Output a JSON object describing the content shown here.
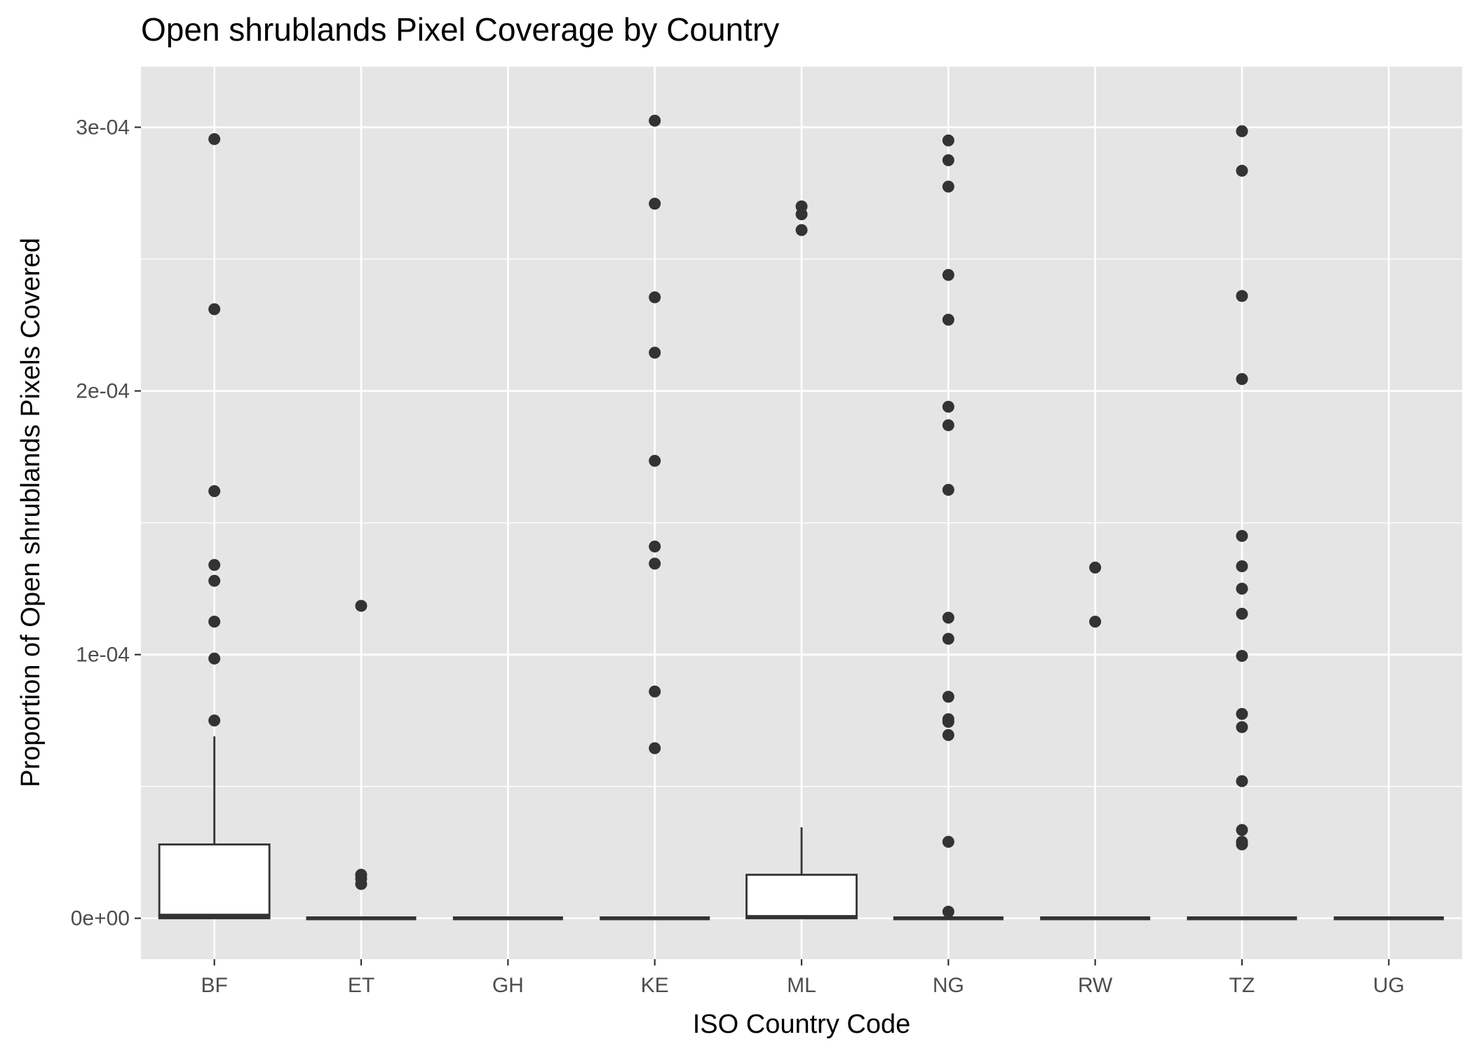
{
  "chart_data": {
    "type": "boxplot",
    "title": "Open shrublands Pixel Coverage by Country",
    "xlabel": "ISO Country Code",
    "ylabel": "Proportion of Open shrublands Pixels Covered",
    "ylim": [
      -1.55e-05,
      0.000323
    ],
    "y_ticks": [
      {
        "value": 0,
        "label": "0e+00"
      },
      {
        "value": 0.0001,
        "label": "1e-04"
      },
      {
        "value": 0.0002,
        "label": "2e-04"
      },
      {
        "value": 0.0003,
        "label": "3e-04"
      }
    ],
    "y_minor_ticks": [
      5e-05,
      0.00015,
      0.00025
    ],
    "grid": true,
    "colors": {
      "panel": "#e5e5e5",
      "grid": "#ffffff",
      "box_fill": "#ffffff",
      "box_line": "#333333",
      "point": "#333333"
    },
    "categories": [
      "BF",
      "ET",
      "GH",
      "KE",
      "ML",
      "NG",
      "RW",
      "TZ",
      "UG"
    ],
    "boxes": [
      {
        "category": "BF",
        "min": 0,
        "q1": 0,
        "median": 1e-06,
        "q3": 2.8e-05,
        "max": 6.9e-05,
        "outliers": [
          7.5e-05,
          9.85e-05,
          0.0001125,
          0.000128,
          0.000134,
          0.000162,
          0.000231,
          0.0002955
        ]
      },
      {
        "category": "ET",
        "min": 0,
        "q1": 0,
        "median": 0,
        "q3": 0,
        "max": 0,
        "outliers": [
          1.3e-05,
          1.5e-05,
          1.65e-05,
          0.0001185
        ]
      },
      {
        "category": "GH",
        "min": 0,
        "q1": 0,
        "median": 0,
        "q3": 0,
        "max": 0,
        "outliers": []
      },
      {
        "category": "KE",
        "min": 0,
        "q1": 0,
        "median": 0,
        "q3": 0,
        "max": 0,
        "outliers": [
          6.45e-05,
          8.6e-05,
          0.0001345,
          0.000141,
          0.0001735,
          0.0002145,
          0.0002355,
          0.000271,
          0.0003025
        ]
      },
      {
        "category": "ML",
        "min": 0,
        "q1": 0,
        "median": 5e-07,
        "q3": 1.65e-05,
        "max": 3.45e-05,
        "outliers": [
          0.000261,
          0.000267,
          0.00027
        ]
      },
      {
        "category": "NG",
        "min": 0,
        "q1": 0,
        "median": 0,
        "q3": 0,
        "max": 0,
        "outliers": [
          2.5e-06,
          2.9e-05,
          6.95e-05,
          7.45e-05,
          7.55e-05,
          8.4e-05,
          0.000106,
          0.000114,
          0.0001625,
          0.000187,
          0.000194,
          0.000227,
          0.000244,
          0.0002775,
          0.0002875,
          0.000295
        ]
      },
      {
        "category": "RW",
        "min": 0,
        "q1": 0,
        "median": 0,
        "q3": 0,
        "max": 0,
        "outliers": [
          0.0001125,
          0.000133
        ]
      },
      {
        "category": "TZ",
        "min": 0,
        "q1": 0,
        "median": 0,
        "q3": 0,
        "max": 0,
        "outliers": [
          2.8e-05,
          2.9e-05,
          3.35e-05,
          5.2e-05,
          7.25e-05,
          7.75e-05,
          9.95e-05,
          0.0001155,
          0.000125,
          0.0001335,
          0.000145,
          0.0002045,
          0.000236,
          0.0002835,
          0.0002985
        ]
      },
      {
        "category": "UG",
        "min": 0,
        "q1": 0,
        "median": 0,
        "q3": 0,
        "max": 0,
        "outliers": []
      }
    ]
  }
}
